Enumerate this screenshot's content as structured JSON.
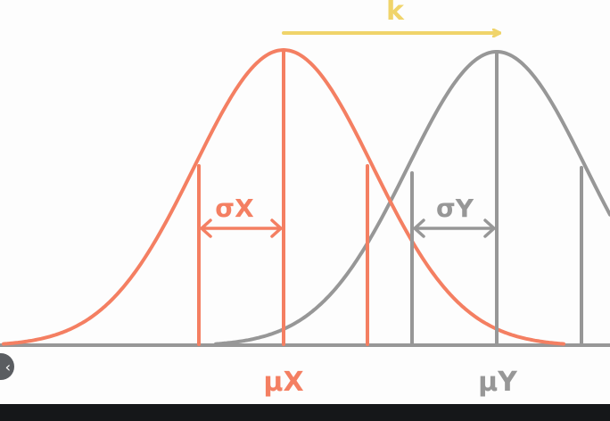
{
  "colors": {
    "background": "#fdfdfd",
    "x_curve": "#f47f62",
    "y_curve": "#979797",
    "shift_arrow": "#f0d46a",
    "axis": "#979797",
    "bottom_bar": "#151719"
  },
  "labels": {
    "shift": "k",
    "sigma_x": "σX",
    "sigma_y": "σY",
    "mu_x": "μX",
    "mu_y": "μY"
  },
  "ui": {
    "side_button_icon": "circle-button-icon",
    "side_button_glyph": "‹"
  }
}
